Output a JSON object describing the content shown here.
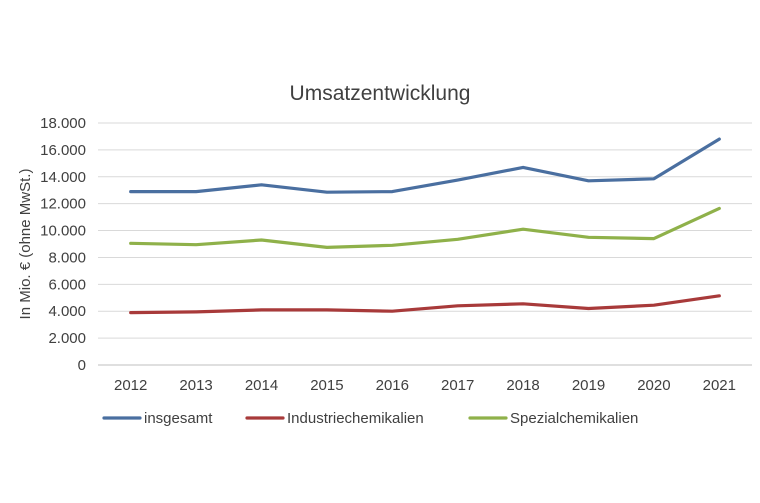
{
  "chart_data": {
    "type": "line",
    "title": "Umsatzentwicklung",
    "xlabel": "",
    "ylabel": "In Mio. € (ohne MwSt.)",
    "ylim": [
      0,
      18000
    ],
    "yticks": [
      0,
      2000,
      4000,
      6000,
      8000,
      10000,
      12000,
      14000,
      16000,
      18000
    ],
    "ytick_labels": [
      "0",
      "2.000",
      "4.000",
      "6.000",
      "8.000",
      "10.000",
      "12.000",
      "14.000",
      "16.000",
      "18.000"
    ],
    "grid": true,
    "legend_position": "bottom",
    "categories": [
      "2012",
      "2013",
      "2014",
      "2015",
      "2016",
      "2017",
      "2018",
      "2019",
      "2020",
      "2021"
    ],
    "series": [
      {
        "name": "insgesamt",
        "color": "#4a6fa0",
        "values": [
          12900,
          12900,
          13400,
          12850,
          12900,
          13750,
          14700,
          13700,
          13850,
          16800
        ]
      },
      {
        "name": "Industriechemikalien",
        "color": "#a83a3a",
        "values": [
          3900,
          3950,
          4100,
          4100,
          4000,
          4400,
          4550,
          4200,
          4450,
          5150
        ]
      },
      {
        "name": "Spezialchemikalien",
        "color": "#8fb14a",
        "values": [
          9050,
          8950,
          9300,
          8750,
          8900,
          9350,
          10100,
          9500,
          9400,
          11650
        ]
      }
    ]
  }
}
